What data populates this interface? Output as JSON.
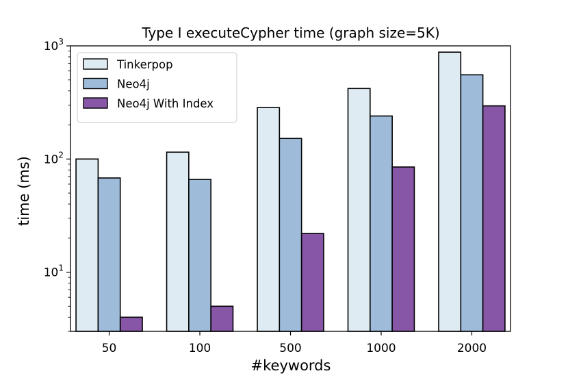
{
  "chart_data": {
    "type": "bar",
    "title": "Type I executeCypher time  (graph size=5K)",
    "xlabel": "#keywords",
    "ylabel": "time (ms)",
    "yscale": "log",
    "ylim": [
      3,
      1000
    ],
    "categories": [
      "50",
      "100",
      "500",
      "1000",
      "2000"
    ],
    "yticks": [
      {
        "value": 10,
        "base": "10",
        "exp": "1"
      },
      {
        "value": 100,
        "base": "10",
        "exp": "2"
      },
      {
        "value": 1000,
        "base": "10",
        "exp": "3"
      }
    ],
    "series": [
      {
        "name": "Tinkerpop",
        "color": "#deebf3",
        "values": [
          100,
          115,
          285,
          420,
          880
        ]
      },
      {
        "name": "Neo4j",
        "color": "#9ebcda",
        "values": [
          68,
          66,
          152,
          240,
          555
        ]
      },
      {
        "name": "Neo4j With Index",
        "color": "#8856a7",
        "values": [
          4,
          5,
          22,
          85,
          295
        ]
      }
    ],
    "legend": "top-left",
    "grid": false
  }
}
